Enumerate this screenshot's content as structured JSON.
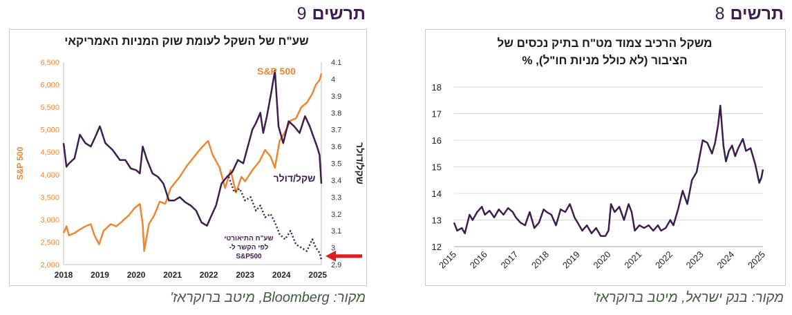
{
  "charts": [
    {
      "id": "chart9",
      "header_label": "תרשים",
      "header_number": "9",
      "source": "מקור: Bloomberg, מיטב ברוקראז'",
      "colors": {
        "spx": "#ed8631",
        "ils": "#3d1b4f",
        "arrow": "#e21b1b",
        "left_axis": "#ed8631"
      }
    },
    {
      "id": "chart8",
      "header_label": "תרשים",
      "header_number": "8",
      "source": "מקור: בנק ישראל, מיטב ברוקראז'",
      "colors": {
        "line": "#3d1b4f"
      }
    }
  ],
  "chart_data": [
    {
      "type": "line",
      "title": "שע\"ח של השקל לעומת שוק המניות האמריקאי",
      "ylabel_left": "S&P 500",
      "ylabel_right": "שקל/דולר",
      "x_ticks": [
        "2018",
        "2019",
        "2020",
        "2021",
        "2022",
        "2023",
        "2024",
        "2025"
      ],
      "xlim": [
        2018.0,
        2025.1
      ],
      "ylim_left": [
        2000,
        6500
      ],
      "yticks_left": [
        "2,000",
        "2,500",
        "3,000",
        "3,500",
        "4,000",
        "4,500",
        "5,000",
        "5,500",
        "6,000",
        "6,500"
      ],
      "ylim_right": [
        2.9,
        4.1
      ],
      "yticks_right": [
        "2.9",
        "3",
        "3.1",
        "3.2",
        "3.3",
        "3.4",
        "3.5",
        "3.6",
        "3.7",
        "3.8",
        "3.9",
        "4",
        "4.1"
      ],
      "series": [
        {
          "name": "S&P 500",
          "axis": "left",
          "style": "solid",
          "points": [
            [
              2018.0,
              2700
            ],
            [
              2018.08,
              2850
            ],
            [
              2018.15,
              2650
            ],
            [
              2018.3,
              2700
            ],
            [
              2018.45,
              2780
            ],
            [
              2018.6,
              2850
            ],
            [
              2018.75,
              2900
            ],
            [
              2018.85,
              2650
            ],
            [
              2018.98,
              2450
            ],
            [
              2019.1,
              2750
            ],
            [
              2019.3,
              2900
            ],
            [
              2019.45,
              2850
            ],
            [
              2019.6,
              2950
            ],
            [
              2019.8,
              3100
            ],
            [
              2019.95,
              3250
            ],
            [
              2020.1,
              3350
            ],
            [
              2020.18,
              2900
            ],
            [
              2020.22,
              2300
            ],
            [
              2020.35,
              2900
            ],
            [
              2020.5,
              3100
            ],
            [
              2020.65,
              3400
            ],
            [
              2020.8,
              3350
            ],
            [
              2020.95,
              3700
            ],
            [
              2021.2,
              3950
            ],
            [
              2021.4,
              4200
            ],
            [
              2021.6,
              4400
            ],
            [
              2021.8,
              4600
            ],
            [
              2021.98,
              4750
            ],
            [
              2022.1,
              4450
            ],
            [
              2022.3,
              4150
            ],
            [
              2022.45,
              3700
            ],
            [
              2022.6,
              4100
            ],
            [
              2022.75,
              3600
            ],
            [
              2022.9,
              3950
            ],
            [
              2023.0,
              3850
            ],
            [
              2023.2,
              4100
            ],
            [
              2023.4,
              4300
            ],
            [
              2023.55,
              4550
            ],
            [
              2023.7,
              4400
            ],
            [
              2023.82,
              4150
            ],
            [
              2023.95,
              4750
            ],
            [
              2024.1,
              4950
            ],
            [
              2024.25,
              5200
            ],
            [
              2024.4,
              5250
            ],
            [
              2024.55,
              5500
            ],
            [
              2024.7,
              5600
            ],
            [
              2024.85,
              5800
            ],
            [
              2024.95,
              6000
            ],
            [
              2025.05,
              6100
            ],
            [
              2025.1,
              6250
            ]
          ]
        },
        {
          "name": "שקל/דולר",
          "axis": "right",
          "style": "solid",
          "points": [
            [
              2018.0,
              3.62
            ],
            [
              2018.08,
              3.48
            ],
            [
              2018.15,
              3.5
            ],
            [
              2018.3,
              3.53
            ],
            [
              2018.45,
              3.67
            ],
            [
              2018.6,
              3.62
            ],
            [
              2018.75,
              3.6
            ],
            [
              2018.9,
              3.67
            ],
            [
              2019.0,
              3.72
            ],
            [
              2019.15,
              3.62
            ],
            [
              2019.35,
              3.58
            ],
            [
              2019.55,
              3.52
            ],
            [
              2019.7,
              3.52
            ],
            [
              2019.85,
              3.47
            ],
            [
              2020.0,
              3.46
            ],
            [
              2020.1,
              3.44
            ],
            [
              2020.18,
              3.6
            ],
            [
              2020.3,
              3.52
            ],
            [
              2020.45,
              3.44
            ],
            [
              2020.6,
              3.42
            ],
            [
              2020.75,
              3.38
            ],
            [
              2020.9,
              3.28
            ],
            [
              2021.05,
              3.28
            ],
            [
              2021.2,
              3.3
            ],
            [
              2021.35,
              3.27
            ],
            [
              2021.5,
              3.25
            ],
            [
              2021.65,
              3.22
            ],
            [
              2021.8,
              3.15
            ],
            [
              2021.95,
              3.13
            ],
            [
              2022.05,
              3.18
            ],
            [
              2022.2,
              3.25
            ],
            [
              2022.35,
              3.38
            ],
            [
              2022.5,
              3.42
            ],
            [
              2022.65,
              3.45
            ],
            [
              2022.8,
              3.52
            ],
            [
              2022.95,
              3.5
            ],
            [
              2023.1,
              3.62
            ],
            [
              2023.2,
              3.7
            ],
            [
              2023.3,
              3.74
            ],
            [
              2023.42,
              3.8
            ],
            [
              2023.5,
              3.68
            ],
            [
              2023.6,
              3.78
            ],
            [
              2023.72,
              3.92
            ],
            [
              2023.82,
              4.05
            ],
            [
              2023.92,
              3.72
            ],
            [
              2024.05,
              3.62
            ],
            [
              2024.2,
              3.75
            ],
            [
              2024.35,
              3.72
            ],
            [
              2024.5,
              3.68
            ],
            [
              2024.65,
              3.78
            ],
            [
              2024.78,
              3.72
            ],
            [
              2024.88,
              3.66
            ],
            [
              2024.98,
              3.6
            ],
            [
              2025.05,
              3.55
            ],
            [
              2025.1,
              3.38
            ]
          ]
        },
        {
          "name": "שע\"ח התיאורטי לפי הקשר ל-S&P500",
          "axis": "right",
          "style": "dotted",
          "points": [
            [
              2022.55,
              3.42
            ],
            [
              2022.7,
              3.33
            ],
            [
              2022.85,
              3.35
            ],
            [
              2023.0,
              3.28
            ],
            [
              2023.15,
              3.3
            ],
            [
              2023.3,
              3.22
            ],
            [
              2023.42,
              3.25
            ],
            [
              2023.55,
              3.18
            ],
            [
              2023.7,
              3.2
            ],
            [
              2023.82,
              3.15
            ],
            [
              2023.95,
              3.08
            ],
            [
              2024.1,
              3.05
            ],
            [
              2024.25,
              3.1
            ],
            [
              2024.4,
              3.02
            ],
            [
              2024.55,
              3.0
            ],
            [
              2024.7,
              2.98
            ],
            [
              2024.85,
              3.05
            ],
            [
              2024.95,
              3.0
            ],
            [
              2025.05,
              2.97
            ],
            [
              2025.1,
              2.93
            ]
          ]
        }
      ],
      "annotations": [
        "S&P 500",
        "שקל/דולר",
        "שע\"ח התיאורטי",
        "לפי הקשר ל-",
        "S&P500"
      ]
    },
    {
      "type": "line",
      "title": "משקל הרכיב צמוד מט\"ח בתיק נכסים של הציבור (לא כולל מניות חו\"ל), %",
      "title_lines": [
        "משקל הרכיב צמוד מט\"ח בתיק נכסים של",
        "הציבור (לא כולל מניות חו\"ל), %"
      ],
      "x_ticks": [
        "2015",
        "2016",
        "2017",
        "2018",
        "2019",
        "2020",
        "2021",
        "2022",
        "2023",
        "2024",
        "2025"
      ],
      "xlim": [
        2015.0,
        2025.0
      ],
      "ylim": [
        12,
        18
      ],
      "yticks": [
        "12",
        "13",
        "14",
        "15",
        "16",
        "17",
        "18"
      ],
      "grid": true,
      "series": [
        {
          "name": "",
          "points": [
            [
              2015.0,
              12.9
            ],
            [
              2015.1,
              12.6
            ],
            [
              2015.25,
              12.7
            ],
            [
              2015.35,
              12.5
            ],
            [
              2015.5,
              13.2
            ],
            [
              2015.6,
              13.0
            ],
            [
              2015.75,
              13.3
            ],
            [
              2015.9,
              13.5
            ],
            [
              2016.0,
              13.2
            ],
            [
              2016.15,
              13.35
            ],
            [
              2016.3,
              13.1
            ],
            [
              2016.45,
              13.4
            ],
            [
              2016.6,
              13.2
            ],
            [
              2016.75,
              13.45
            ],
            [
              2016.9,
              13.3
            ],
            [
              2017.0,
              13.1
            ],
            [
              2017.15,
              12.9
            ],
            [
              2017.3,
              12.8
            ],
            [
              2017.45,
              13.3
            ],
            [
              2017.6,
              12.7
            ],
            [
              2017.75,
              12.9
            ],
            [
              2017.9,
              13.4
            ],
            [
              2018.0,
              13.3
            ],
            [
              2018.15,
              13.2
            ],
            [
              2018.3,
              12.8
            ],
            [
              2018.45,
              13.4
            ],
            [
              2018.6,
              13.3
            ],
            [
              2018.75,
              13.6
            ],
            [
              2018.9,
              13.1
            ],
            [
              2019.0,
              12.9
            ],
            [
              2019.15,
              12.6
            ],
            [
              2019.3,
              12.8
            ],
            [
              2019.45,
              12.5
            ],
            [
              2019.6,
              12.7
            ],
            [
              2019.75,
              12.4
            ],
            [
              2019.9,
              12.4
            ],
            [
              2020.0,
              12.6
            ],
            [
              2020.08,
              13.6
            ],
            [
              2020.2,
              13.3
            ],
            [
              2020.35,
              13.5
            ],
            [
              2020.5,
              13.0
            ],
            [
              2020.65,
              13.6
            ],
            [
              2020.75,
              13.3
            ],
            [
              2020.85,
              12.6
            ],
            [
              2021.0,
              12.8
            ],
            [
              2021.15,
              12.7
            ],
            [
              2021.3,
              12.8
            ],
            [
              2021.45,
              12.6
            ],
            [
              2021.6,
              12.8
            ],
            [
              2021.7,
              12.6
            ],
            [
              2021.85,
              12.7
            ],
            [
              2022.0,
              13.0
            ],
            [
              2022.1,
              12.8
            ],
            [
              2022.25,
              13.4
            ],
            [
              2022.4,
              14.1
            ],
            [
              2022.55,
              13.6
            ],
            [
              2022.7,
              14.5
            ],
            [
              2022.85,
              14.8
            ],
            [
              2022.95,
              15.4
            ],
            [
              2023.05,
              16.0
            ],
            [
              2023.2,
              15.9
            ],
            [
              2023.35,
              15.5
            ],
            [
              2023.45,
              15.9
            ],
            [
              2023.55,
              16.6
            ],
            [
              2023.62,
              17.3
            ],
            [
              2023.72,
              15.8
            ],
            [
              2023.8,
              15.2
            ],
            [
              2023.9,
              15.6
            ],
            [
              2024.0,
              15.8
            ],
            [
              2024.1,
              15.4
            ],
            [
              2024.2,
              15.7
            ],
            [
              2024.35,
              16.05
            ],
            [
              2024.45,
              15.6
            ],
            [
              2024.6,
              15.7
            ],
            [
              2024.75,
              15.1
            ],
            [
              2024.88,
              14.4
            ],
            [
              2024.95,
              14.6
            ],
            [
              2025.0,
              14.9
            ]
          ]
        }
      ]
    }
  ]
}
